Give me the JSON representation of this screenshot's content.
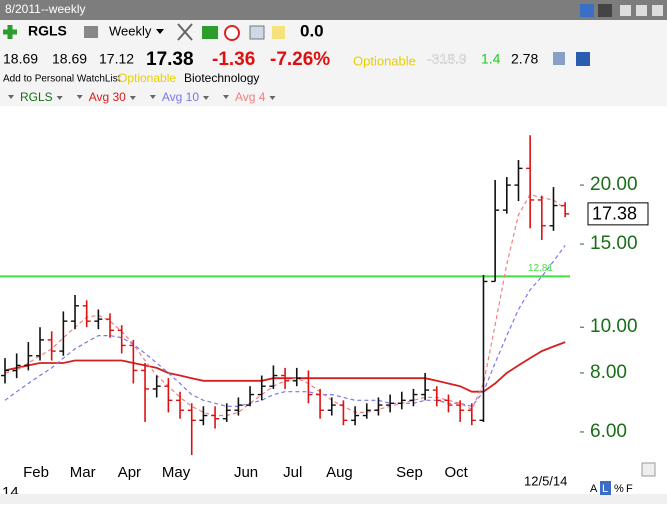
{
  "header": {
    "period": "8/2011--weekly",
    "symbol": "RGLS",
    "timeframe": "Weekly",
    "change_value": "0.0"
  },
  "quote": {
    "open": "18.69",
    "high": "18.69",
    "low": "17.12",
    "last": "17.38",
    "change": "-1.36",
    "change_pct": "-7.26%",
    "optionable": "Optionable",
    "field_a": "-318.9",
    "field_b": "1.4",
    "field_c": "2.78"
  },
  "info": {
    "watchlist": "Add to Personal WatchList",
    "optionable": "Optionable",
    "industry": "Biotechnology"
  },
  "footer": {
    "buttons": [
      "A",
      "L",
      "%",
      "F"
    ]
  },
  "chart_data": {
    "type": "ohlc",
    "name": "RGLS",
    "up_color": "#111111",
    "down_color": "#dd1111",
    "categories": [
      null,
      null,
      null,
      "Feb",
      null,
      null,
      null,
      "Mar",
      null,
      null,
      null,
      "Apr",
      null,
      null,
      null,
      "May",
      null,
      null,
      null,
      null,
      null,
      "Jun",
      null,
      null,
      null,
      "Jul",
      null,
      null,
      null,
      "Aug",
      null,
      null,
      null,
      null,
      null,
      "Sep",
      null,
      null,
      null,
      "Oct",
      null,
      null,
      null,
      null,
      null,
      null,
      null,
      null,
      null
    ],
    "open": [
      7.9,
      8.1,
      8.3,
      8.7,
      9.4,
      8.9,
      10.3,
      11.1,
      10.3,
      10.4,
      9.85,
      9.15,
      8.1,
      7.4,
      7.5,
      7.0,
      6.67,
      6.35,
      6.5,
      6.4,
      6.67,
      6.84,
      7.2,
      7.5,
      7.9,
      7.7,
      7.8,
      7.2,
      6.67,
      6.84,
      6.35,
      6.5,
      6.67,
      6.84,
      6.9,
      7.0,
      7.2,
      7.36,
      7.0,
      6.84,
      6.67,
      6.35,
      12.5,
      17.7,
      20.0,
      21.7,
      18.6,
      16.4,
      18.1
    ],
    "high": [
      8.6,
      8.8,
      9.3,
      10.0,
      9.8,
      10.8,
      11.7,
      11.4,
      10.9,
      10.7,
      10.1,
      9.4,
      8.4,
      7.9,
      7.8,
      7.3,
      6.9,
      6.8,
      6.8,
      6.9,
      7.1,
      7.5,
      7.9,
      8.3,
      8.2,
      8.2,
      8.1,
      7.4,
      7.1,
      7.0,
      6.8,
      6.9,
      7.1,
      7.2,
      7.3,
      7.4,
      8.0,
      7.5,
      7.2,
      7.0,
      6.9,
      12.9,
      20.5,
      20.8,
      22.6,
      25.5,
      19.0,
      19.8,
      18.4
    ],
    "low": [
      7.6,
      7.8,
      8.1,
      8.5,
      8.5,
      8.7,
      9.9,
      10.0,
      9.9,
      9.5,
      8.8,
      7.6,
      6.3,
      7.1,
      6.6,
      6.4,
      5.36,
      6.2,
      6.1,
      6.3,
      6.5,
      6.8,
      7.0,
      7.4,
      7.4,
      7.5,
      6.9,
      6.4,
      6.5,
      6.2,
      6.2,
      6.4,
      6.5,
      6.6,
      6.7,
      6.8,
      7.0,
      6.8,
      6.6,
      6.3,
      6.2,
      6.3,
      12.5,
      17.4,
      18.5,
      16.2,
      15.3,
      16.0,
      17.1
    ],
    "close": [
      8.1,
      8.3,
      8.7,
      9.4,
      8.9,
      10.3,
      11.1,
      10.3,
      10.4,
      9.85,
      9.15,
      8.1,
      7.4,
      7.5,
      7.0,
      6.67,
      6.35,
      6.5,
      6.4,
      6.67,
      6.84,
      7.2,
      7.5,
      7.9,
      7.7,
      7.8,
      7.2,
      6.67,
      6.84,
      6.35,
      6.5,
      6.67,
      6.84,
      6.9,
      7.0,
      7.2,
      7.36,
      7.0,
      6.84,
      6.67,
      6.35,
      12.5,
      17.7,
      20.0,
      21.7,
      18.6,
      16.4,
      18.1,
      17.38
    ],
    "series": [
      {
        "name": "Avg 30",
        "color": "#d42020",
        "dashed": false,
        "values": [
          8.1,
          8.2,
          8.3,
          8.4,
          8.4,
          8.4,
          8.5,
          8.5,
          8.5,
          8.5,
          8.5,
          8.4,
          8.3,
          8.2,
          8.0,
          7.9,
          7.8,
          7.7,
          7.7,
          7.7,
          7.7,
          7.7,
          7.7,
          7.8,
          7.8,
          7.8,
          7.8,
          7.8,
          7.8,
          7.8,
          7.8,
          7.8,
          7.8,
          7.8,
          7.8,
          7.8,
          7.8,
          7.7,
          7.6,
          7.5,
          7.3,
          7.3,
          7.6,
          8.0,
          8.3,
          8.6,
          8.9,
          9.1,
          9.3
        ]
      },
      {
        "name": "Avg 10",
        "color": "#7777ee",
        "dashed": true,
        "values": [
          7.0,
          7.3,
          7.6,
          7.9,
          8.2,
          8.6,
          9.0,
          9.3,
          9.6,
          9.6,
          9.5,
          9.2,
          8.8,
          8.4,
          8.0,
          7.6,
          7.2,
          7.0,
          6.9,
          6.8,
          6.8,
          6.9,
          7.0,
          7.2,
          7.3,
          7.3,
          7.3,
          7.2,
          7.2,
          7.1,
          7.0,
          7.0,
          7.0,
          6.9,
          6.9,
          6.9,
          7.0,
          7.0,
          6.9,
          6.9,
          6.8,
          7.3,
          8.4,
          9.6,
          10.9,
          12.0,
          12.8,
          13.8,
          14.9
        ]
      },
      {
        "name": "Avg 4",
        "color": "#f08080",
        "dashed": true,
        "values": [
          8.0,
          8.1,
          8.4,
          8.7,
          9.0,
          9.5,
          10.0,
          10.5,
          10.6,
          10.3,
          9.8,
          9.2,
          8.5,
          7.9,
          7.5,
          7.1,
          6.8,
          6.6,
          6.5,
          6.5,
          6.6,
          6.9,
          7.2,
          7.5,
          7.7,
          7.8,
          7.6,
          7.3,
          7.0,
          6.8,
          6.6,
          6.6,
          6.7,
          6.8,
          6.9,
          7.0,
          7.1,
          7.1,
          7.0,
          6.9,
          6.7,
          7.6,
          10.1,
          13.6,
          17.3,
          19.1,
          18.8,
          18.6,
          17.8
        ]
      }
    ],
    "reference_line": 12.81,
    "reference_color": "#44dd44",
    "log_scale": true,
    "grid": false,
    "ylim": [
      4.84,
      29.7
    ],
    "yticks": [
      {
        "value": 6,
        "label": "6.00"
      },
      {
        "value": 8,
        "label": "8.00"
      },
      {
        "value": 10,
        "label": "10.00"
      },
      {
        "value": 15,
        "label": "15.00"
      },
      {
        "value": 20,
        "label": "20.00"
      }
    ],
    "tick_color": "#1a6e1a",
    "year_label": "14",
    "end_label": "12/5/14"
  }
}
